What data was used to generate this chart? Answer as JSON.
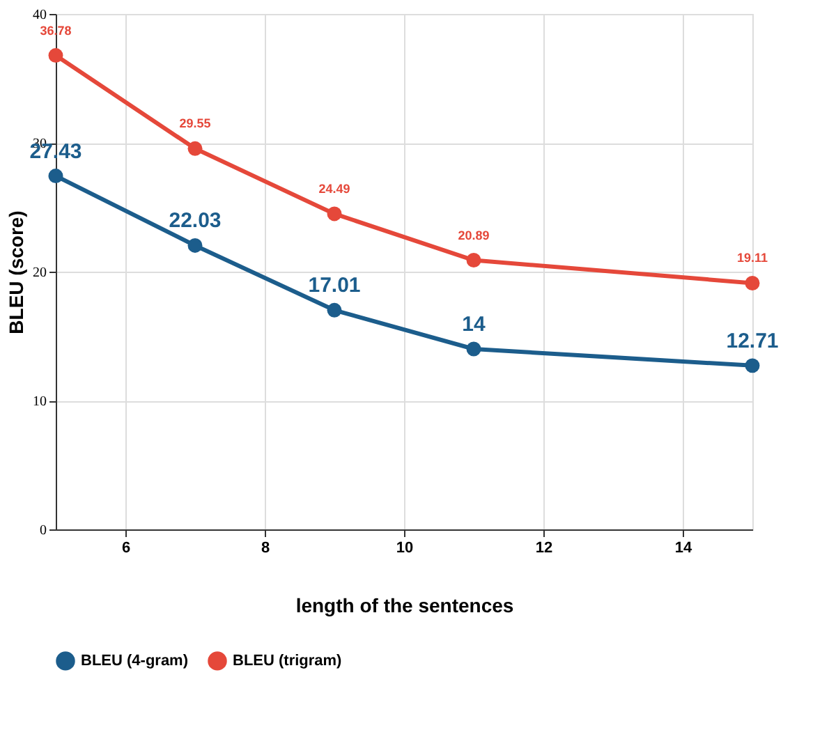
{
  "chart_data": {
    "type": "line",
    "xlabel": "length of the sentences",
    "ylabel": "BLEU (score)",
    "x": [
      5,
      7,
      9,
      11,
      15
    ],
    "series": [
      {
        "name": "BLEU (4-gram)",
        "color": "#1c5d8c",
        "values": [
          27.43,
          22.03,
          17.01,
          14,
          12.71
        ]
      },
      {
        "name": "BLEU (trigram)",
        "color": "#e5483a",
        "values": [
          36.78,
          29.55,
          24.49,
          20.89,
          19.11
        ]
      }
    ],
    "xlim": [
      5,
      15
    ],
    "xticks": [
      6,
      8,
      10,
      12,
      14
    ],
    "ylim": [
      0,
      40
    ],
    "yticks": [
      0,
      10,
      20,
      30,
      40
    ],
    "grid": true,
    "legend": "bottom",
    "marker": "circle",
    "line_style": "solid",
    "data_labels": true
  }
}
